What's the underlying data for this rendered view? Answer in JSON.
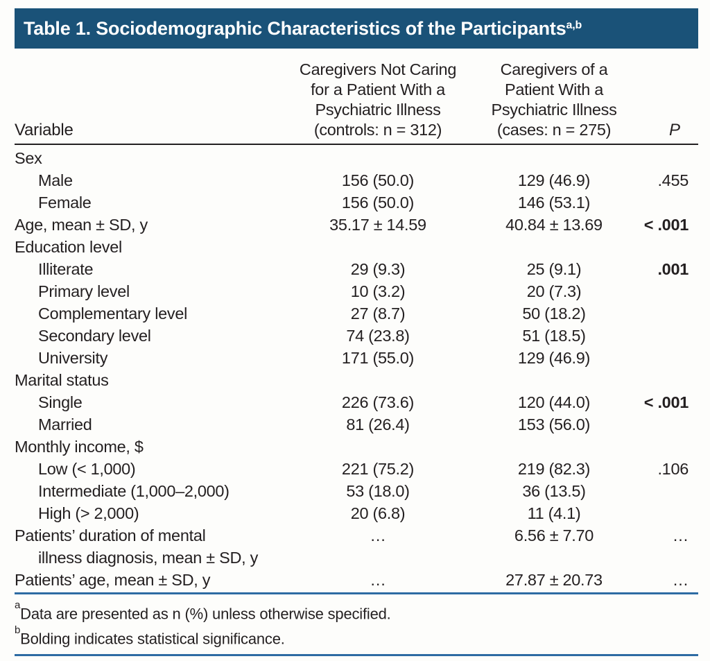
{
  "colors": {
    "title_bar_bg": "#1a5278",
    "rule_blue": "#2d6ba3",
    "text": "#231f20",
    "title_text": "#ffffff",
    "page_bg": "#fdfdfb"
  },
  "table": {
    "title": "Table 1. Sociodemographic Characteristics of the Participants",
    "title_superscript": "a,b",
    "header": {
      "variable": "Variable",
      "controls": [
        "Caregivers Not Caring",
        "for a Patient With a",
        "Psychiatric Illness",
        "(controls: n = 312)"
      ],
      "cases": [
        "Caregivers of a",
        "Patient With a",
        "Psychiatric Illness",
        "(cases: n = 275)"
      ],
      "p": "P"
    },
    "rows": [
      {
        "label": "Sex",
        "indent": 0
      },
      {
        "label": "Male",
        "indent": 1,
        "c1": "156 (50.0)",
        "c2": "129 (46.9)",
        "p": ".455"
      },
      {
        "label": "Female",
        "indent": 1,
        "c1": "156 (50.0)",
        "c2": "146 (53.1)"
      },
      {
        "label": "Age, mean ± SD, y",
        "indent": 0,
        "c1": "35.17 ± 14.59",
        "c2": "40.84 ± 13.69",
        "p": "< .001",
        "p_bold": true
      },
      {
        "label": "Education level",
        "indent": 0
      },
      {
        "label": "Illiterate",
        "indent": 1,
        "c1": "29 (9.3)",
        "c2": "25 (9.1)",
        "p": ".001",
        "p_bold": true
      },
      {
        "label": "Primary level",
        "indent": 1,
        "c1": "10 (3.2)",
        "c2": "20 (7.3)"
      },
      {
        "label": "Complementary level",
        "indent": 1,
        "c1": "27 (8.7)",
        "c2": "50 (18.2)"
      },
      {
        "label": "Secondary level",
        "indent": 1,
        "c1": "74 (23.8)",
        "c2": "51 (18.5)"
      },
      {
        "label": "University",
        "indent": 1,
        "c1": "171 (55.0)",
        "c2": "129 (46.9)"
      },
      {
        "label": "Marital status",
        "indent": 0
      },
      {
        "label": "Single",
        "indent": 1,
        "c1": "226 (73.6)",
        "c2": "120 (44.0)",
        "p": "< .001",
        "p_bold": true
      },
      {
        "label": "Married",
        "indent": 1,
        "c1": "81 (26.4)",
        "c2": "153 (56.0)"
      },
      {
        "label": "Monthly income, $",
        "indent": 0
      },
      {
        "label": "Low (< 1,000)",
        "indent": 1,
        "c1": "221 (75.2)",
        "c2": "219 (82.3)",
        "p": ".106"
      },
      {
        "label": "Intermediate (1,000–2,000)",
        "indent": 1,
        "c1": "53 (18.0)",
        "c2": "36 (13.5)"
      },
      {
        "label": "High (> 2,000)",
        "indent": 1,
        "c1": "20 (6.8)",
        "c2": "11 (4.1)"
      },
      {
        "lines": [
          "Patients’ duration of mental",
          "illness diagnosis, mean ± SD, y"
        ],
        "indent": 0,
        "c1": "…",
        "c2": "6.56 ± 7.70",
        "p": "…"
      },
      {
        "label": "Patients’ age, mean ± SD, y",
        "indent": 0,
        "c1": "…",
        "c2": "27.87 ± 20.73",
        "p": "…"
      }
    ],
    "footnotes": [
      {
        "marker": "a",
        "text": "Data are presented as n (%) unless otherwise specified."
      },
      {
        "marker": "b",
        "text": "Bolding indicates statistical significance."
      }
    ]
  }
}
